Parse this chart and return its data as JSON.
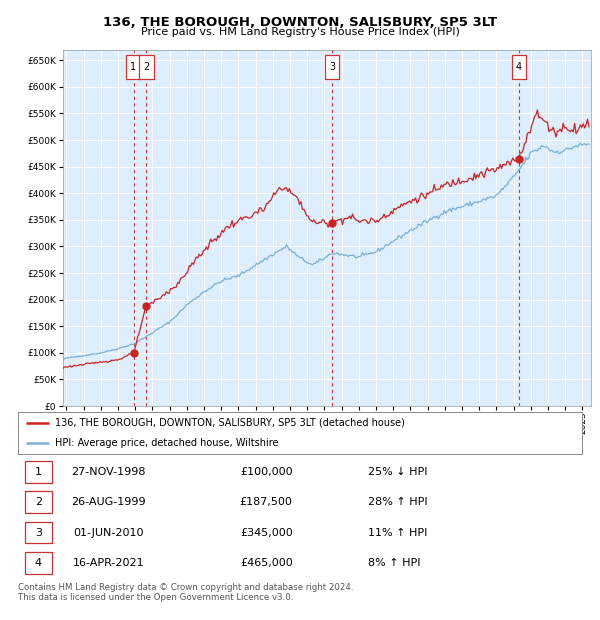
{
  "title": "136, THE BOROUGH, DOWNTON, SALISBURY, SP5 3LT",
  "subtitle": "Price paid vs. HM Land Registry's House Price Index (HPI)",
  "legend_line1": "136, THE BOROUGH, DOWNTON, SALISBURY, SP5 3LT (detached house)",
  "legend_line2": "HPI: Average price, detached house, Wiltshire",
  "footer1": "Contains HM Land Registry data © Crown copyright and database right 2024.",
  "footer2": "This data is licensed under the Open Government Licence v3.0.",
  "sales": [
    {
      "num": "1",
      "date": "27-NOV-1998",
      "price_x": 1998.9,
      "price_y": 100000
    },
    {
      "num": "2",
      "date": "26-AUG-1999",
      "price_x": 1999.65,
      "price_y": 187500
    },
    {
      "num": "3",
      "date": "01-JUN-2010",
      "price_x": 2010.45,
      "price_y": 345000
    },
    {
      "num": "4",
      "date": "16-APR-2021",
      "price_x": 2021.3,
      "price_y": 465000
    }
  ],
  "hpi_color": "#7bafd4",
  "price_color": "#cc2222",
  "sale_marker_color": "#cc2222",
  "fig_bg": "#ffffff",
  "plot_bg": "#ddeeff",
  "grid_color": "#ffffff",
  "vline_color": "#cc3333",
  "ylim": [
    0,
    670000
  ],
  "yticks": [
    0,
    50000,
    100000,
    150000,
    200000,
    250000,
    300000,
    350000,
    400000,
    450000,
    500000,
    550000,
    600000,
    650000
  ],
  "xlim_start": 1994.8,
  "xlim_end": 2025.5,
  "table_rows": [
    [
      "1",
      "27-NOV-1998",
      "£100,000",
      "25% ↓ HPI"
    ],
    [
      "2",
      "26-AUG-1999",
      "£187,500",
      "28% ↑ HPI"
    ],
    [
      "3",
      "01-JUN-2010",
      "£345,000",
      "11% ↑ HPI"
    ],
    [
      "4",
      "16-APR-2021",
      "£465,000",
      "8% ↑ HPI"
    ]
  ]
}
